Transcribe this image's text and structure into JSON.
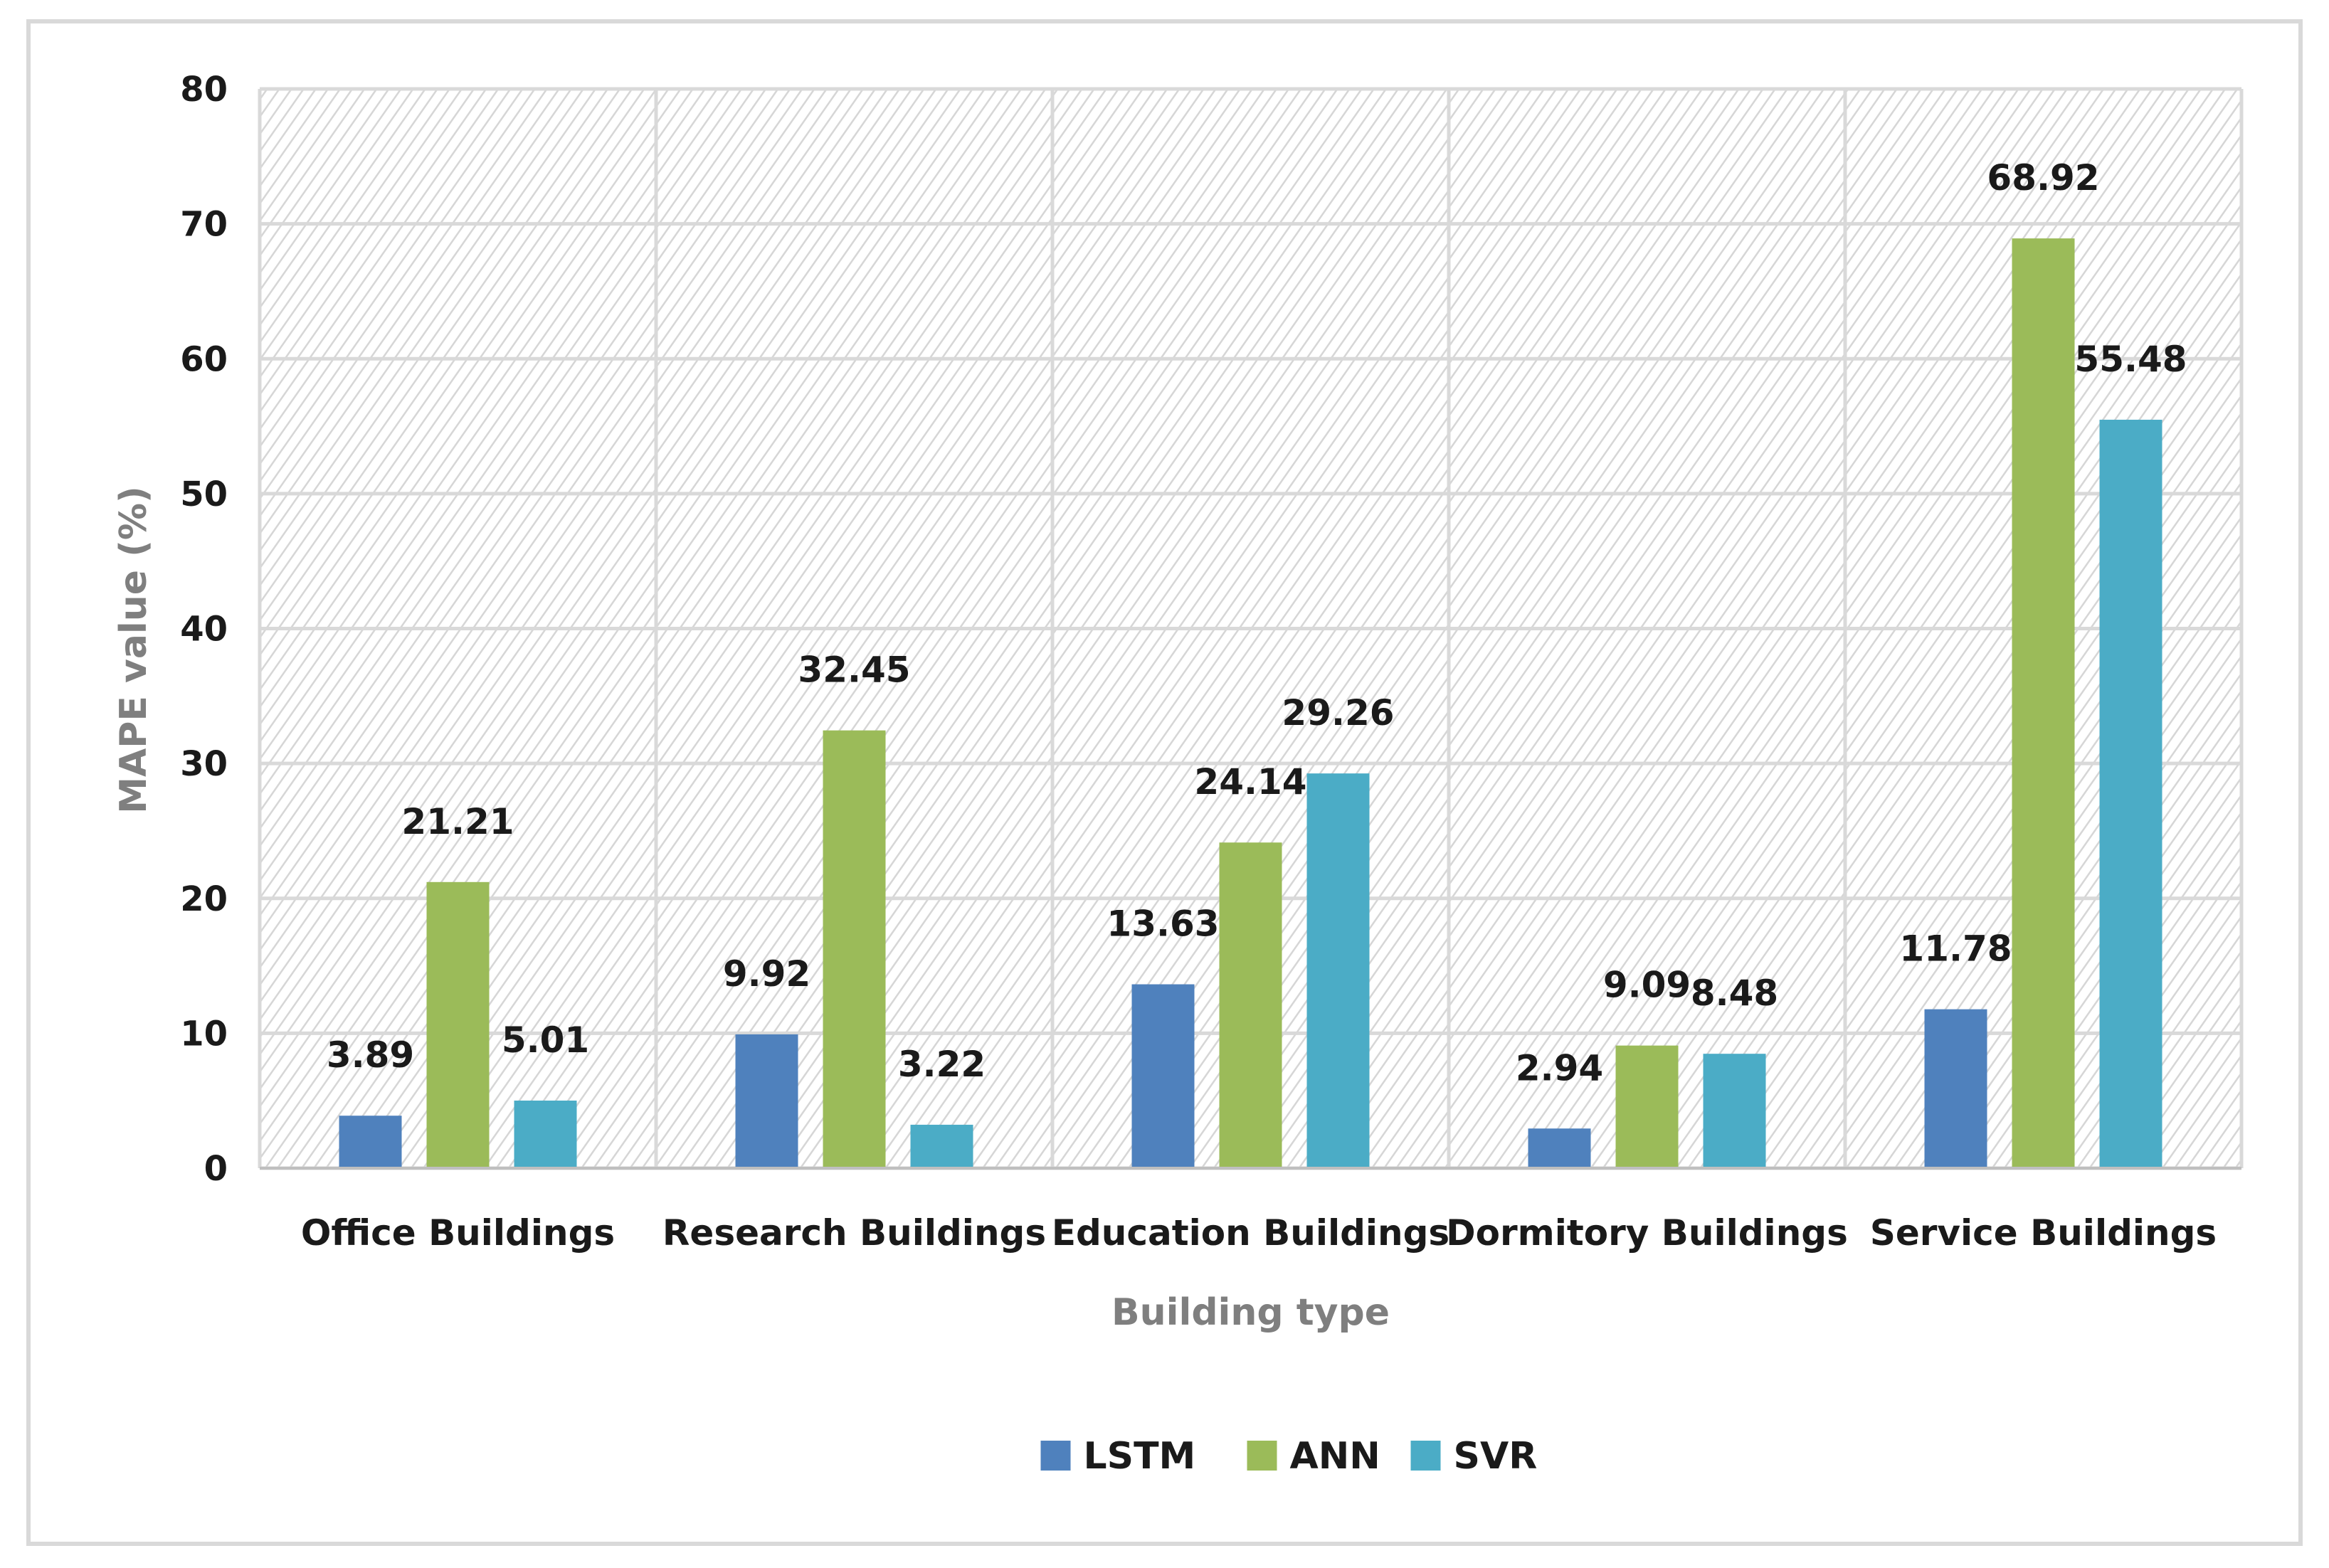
{
  "chart_data": {
    "type": "bar",
    "title": "",
    "xlabel": "Building type",
    "ylabel": "MAPE value (%)",
    "ylim": [
      0,
      80
    ],
    "yticks": [
      0,
      10,
      20,
      30,
      40,
      50,
      60,
      70,
      80
    ],
    "categories": [
      "Office Buildings",
      "Research Buildings",
      "Education Buildings",
      "Dormitory Buildings",
      "Service Buildings"
    ],
    "series": [
      {
        "name": "LSTM",
        "color": "#4f81bd",
        "values": [
          3.89,
          9.92,
          13.63,
          2.94,
          11.78
        ],
        "labels": [
          "3.89",
          "9.92",
          "13.63",
          "2.94",
          "11.78"
        ]
      },
      {
        "name": "ANN",
        "color": "#9bbb59",
        "values": [
          21.21,
          32.45,
          24.14,
          9.09,
          68.92
        ],
        "labels": [
          "21.21",
          "32.45",
          "24.14",
          "9.09",
          "68.92"
        ]
      },
      {
        "name": "SVR",
        "color": "#4bacc6",
        "values": [
          5.01,
          3.22,
          29.26,
          8.48,
          55.48
        ],
        "labels": [
          "5.01",
          "3.22",
          "29.26",
          "8.48",
          "55.48"
        ]
      }
    ],
    "grid": true,
    "legend": "bottom-center"
  }
}
